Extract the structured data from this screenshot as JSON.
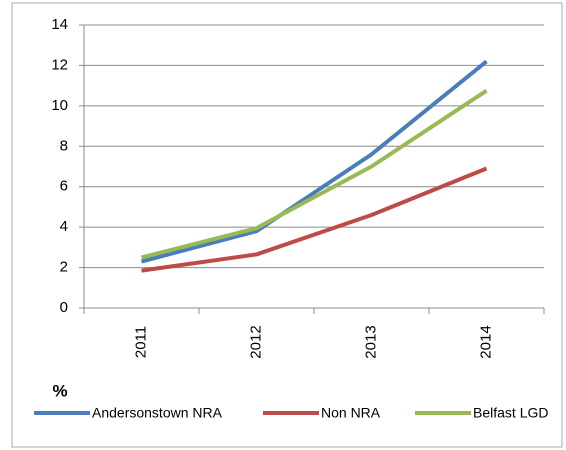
{
  "chart_data": {
    "type": "line",
    "ylabel": "%",
    "categories": [
      "2011",
      "2012",
      "2013",
      "2014"
    ],
    "series": [
      {
        "name": "Andersonstown NRA",
        "color": "#4a7ebb",
        "values": [
          2.3,
          3.8,
          7.6,
          12.2
        ]
      },
      {
        "name": "Non NRA",
        "color": "#be4b48",
        "values": [
          1.85,
          2.65,
          4.6,
          6.9
        ]
      },
      {
        "name": "Belfast LGD",
        "color": "#98b954",
        "values": [
          2.5,
          3.95,
          7.0,
          10.75
        ]
      }
    ],
    "ylim": [
      0,
      14
    ],
    "yticks": [
      0,
      2,
      4,
      6,
      8,
      10,
      12,
      14
    ],
    "grid": true,
    "legend": "bottom"
  }
}
